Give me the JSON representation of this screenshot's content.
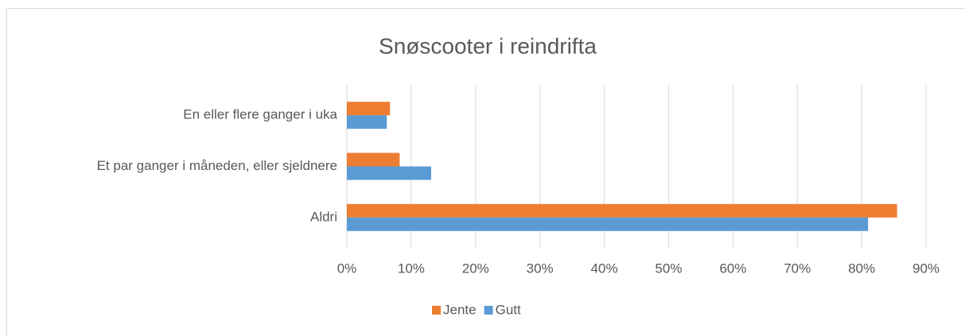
{
  "chart_data": {
    "type": "hbar",
    "title": "Snøscooter i reindrifta",
    "categories": [
      "En eller flere ganger i uka",
      "Et par ganger i måneden, eller sjeldnere",
      "Aldri"
    ],
    "series": [
      {
        "name": "Jente",
        "color": "#ed7d31",
        "values": [
          6.7,
          8.2,
          85.5
        ]
      },
      {
        "name": "Gutt",
        "color": "#5b9bd5",
        "values": [
          6.2,
          13.1,
          81.0
        ]
      }
    ],
    "xlim": [
      0,
      90
    ],
    "xticks": [
      {
        "value": 0,
        "label": "0%"
      },
      {
        "value": 10,
        "label": "10%"
      },
      {
        "value": 20,
        "label": "20%"
      },
      {
        "value": 30,
        "label": "30%"
      },
      {
        "value": 40,
        "label": "40%"
      },
      {
        "value": 50,
        "label": "50%"
      },
      {
        "value": 60,
        "label": "60%"
      },
      {
        "value": 70,
        "label": "70%"
      },
      {
        "value": 80,
        "label": "80%"
      },
      {
        "value": 90,
        "label": "90%"
      }
    ],
    "grid": true,
    "legend": "bottom"
  }
}
